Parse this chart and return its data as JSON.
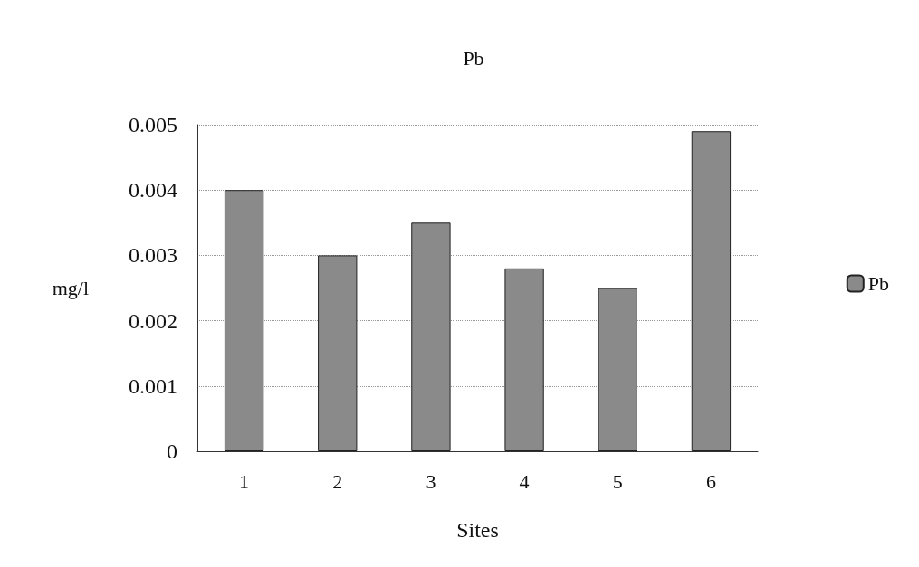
{
  "chart_data": {
    "type": "bar",
    "title": "Pb",
    "xlabel": "Sites",
    "ylabel": "mg/l",
    "categories": [
      "1",
      "2",
      "3",
      "4",
      "5",
      "6"
    ],
    "series": [
      {
        "name": "Pb",
        "color": "#8a8a8a",
        "values": [
          0.004,
          0.003,
          0.0035,
          0.0028,
          0.0025,
          0.0049
        ]
      }
    ],
    "ylim": [
      0,
      0.005
    ],
    "yticks": [
      0,
      0.001,
      0.002,
      0.003,
      0.004,
      0.005
    ],
    "grid": "y",
    "legend": "right"
  }
}
